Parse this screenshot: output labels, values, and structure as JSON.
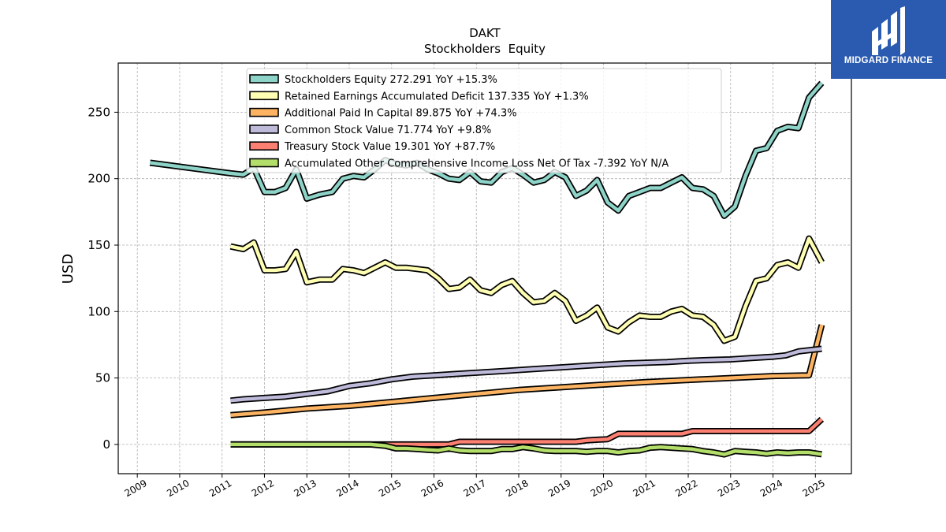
{
  "chart_data": {
    "type": "line",
    "title": "DAKT",
    "subtitle": "Stockholders  Equity",
    "ylabel": "USD",
    "xlabel": "",
    "ylim": [
      -22,
      287
    ],
    "xlim": [
      2008.55,
      2025.85
    ],
    "y_ticks": [
      0,
      50,
      100,
      150,
      200,
      250
    ],
    "x_ticks": [
      "2009",
      "2010",
      "2011",
      "2012",
      "2013",
      "2014",
      "2015",
      "2016",
      "2017",
      "2018",
      "2019",
      "2020",
      "2021",
      "2022",
      "2023",
      "2024",
      "2025"
    ],
    "grid": true,
    "legend_position": "top-center",
    "series": [
      {
        "name": "Stockholders Equity  272.291 YoY +15.3%",
        "color": "#8dd3c7",
        "points": [
          [
            2009.3,
            212
          ],
          [
            2011.2,
            204
          ],
          [
            2011.5,
            203
          ],
          [
            2011.75,
            208
          ],
          [
            2012.0,
            190
          ],
          [
            2012.25,
            190
          ],
          [
            2012.5,
            193
          ],
          [
            2012.75,
            207
          ],
          [
            2013.0,
            185
          ],
          [
            2013.3,
            188
          ],
          [
            2013.6,
            190
          ],
          [
            2013.85,
            200
          ],
          [
            2014.1,
            202
          ],
          [
            2014.35,
            201
          ],
          [
            2014.6,
            207
          ],
          [
            2014.85,
            214
          ],
          [
            2015.1,
            211
          ],
          [
            2015.35,
            210
          ],
          [
            2015.6,
            212
          ],
          [
            2015.85,
            207
          ],
          [
            2016.1,
            204
          ],
          [
            2016.35,
            200
          ],
          [
            2016.6,
            199
          ],
          [
            2016.85,
            205
          ],
          [
            2017.1,
            198
          ],
          [
            2017.35,
            197
          ],
          [
            2017.6,
            205
          ],
          [
            2017.85,
            208
          ],
          [
            2018.1,
            203
          ],
          [
            2018.35,
            197
          ],
          [
            2018.6,
            199
          ],
          [
            2018.85,
            205
          ],
          [
            2019.1,
            201
          ],
          [
            2019.35,
            187
          ],
          [
            2019.6,
            191
          ],
          [
            2019.85,
            199
          ],
          [
            2020.1,
            182
          ],
          [
            2020.35,
            176
          ],
          [
            2020.6,
            187
          ],
          [
            2020.85,
            190
          ],
          [
            2021.1,
            193
          ],
          [
            2021.35,
            193
          ],
          [
            2021.6,
            197
          ],
          [
            2021.85,
            201
          ],
          [
            2022.1,
            193
          ],
          [
            2022.35,
            192
          ],
          [
            2022.6,
            187
          ],
          [
            2022.85,
            172
          ],
          [
            2023.1,
            179
          ],
          [
            2023.35,
            202
          ],
          [
            2023.6,
            221
          ],
          [
            2023.85,
            223
          ],
          [
            2024.1,
            236
          ],
          [
            2024.35,
            239
          ],
          [
            2024.6,
            238
          ],
          [
            2024.85,
            261
          ],
          [
            2025.15,
            272
          ]
        ]
      },
      {
        "name": "Retained Earnings Accumulated Deficit  137.335 YoY +1.3%",
        "color": "#ffffb3",
        "points": [
          [
            2011.2,
            149
          ],
          [
            2011.5,
            147
          ],
          [
            2011.75,
            152
          ],
          [
            2012.0,
            131
          ],
          [
            2012.25,
            131
          ],
          [
            2012.5,
            132
          ],
          [
            2012.75,
            145
          ],
          [
            2013.0,
            122
          ],
          [
            2013.3,
            124
          ],
          [
            2013.6,
            124
          ],
          [
            2013.85,
            132
          ],
          [
            2014.1,
            131
          ],
          [
            2014.35,
            129
          ],
          [
            2014.6,
            133
          ],
          [
            2014.85,
            137
          ],
          [
            2015.1,
            133
          ],
          [
            2015.35,
            133
          ],
          [
            2015.6,
            132
          ],
          [
            2015.85,
            131
          ],
          [
            2016.1,
            125
          ],
          [
            2016.35,
            117
          ],
          [
            2016.6,
            118
          ],
          [
            2016.85,
            124
          ],
          [
            2017.1,
            116
          ],
          [
            2017.35,
            114
          ],
          [
            2017.6,
            120
          ],
          [
            2017.85,
            123
          ],
          [
            2018.1,
            114
          ],
          [
            2018.35,
            107
          ],
          [
            2018.6,
            108
          ],
          [
            2018.85,
            114
          ],
          [
            2019.1,
            108
          ],
          [
            2019.35,
            93
          ],
          [
            2019.6,
            97
          ],
          [
            2019.85,
            103
          ],
          [
            2020.1,
            88
          ],
          [
            2020.35,
            85
          ],
          [
            2020.6,
            92
          ],
          [
            2020.85,
            97
          ],
          [
            2021.1,
            96
          ],
          [
            2021.35,
            96
          ],
          [
            2021.6,
            100
          ],
          [
            2021.85,
            102
          ],
          [
            2022.1,
            97
          ],
          [
            2022.35,
            96
          ],
          [
            2022.6,
            90
          ],
          [
            2022.85,
            78
          ],
          [
            2023.1,
            81
          ],
          [
            2023.35,
            104
          ],
          [
            2023.6,
            123
          ],
          [
            2023.85,
            125
          ],
          [
            2024.1,
            135
          ],
          [
            2024.35,
            137
          ],
          [
            2024.6,
            133
          ],
          [
            2024.85,
            155
          ],
          [
            2025.15,
            137
          ]
        ]
      },
      {
        "name": "Additional Paid In Capital  89.875 YoY +74.3%",
        "color": "#fdb462",
        "points": [
          [
            2011.2,
            22
          ],
          [
            2012.0,
            24
          ],
          [
            2013.0,
            27
          ],
          [
            2014.0,
            29
          ],
          [
            2015.0,
            32
          ],
          [
            2016.0,
            35
          ],
          [
            2017.0,
            38
          ],
          [
            2018.0,
            41
          ],
          [
            2019.0,
            43
          ],
          [
            2020.0,
            45
          ],
          [
            2021.0,
            47
          ],
          [
            2022.0,
            48.5
          ],
          [
            2023.0,
            50
          ],
          [
            2024.0,
            51.5
          ],
          [
            2024.85,
            52
          ],
          [
            2025.15,
            90
          ]
        ]
      },
      {
        "name": "Common Stock Value  71.774 YoY +9.8%",
        "color": "#bebada",
        "points": [
          [
            2011.2,
            33
          ],
          [
            2011.5,
            34
          ],
          [
            2012.0,
            35
          ],
          [
            2012.5,
            36
          ],
          [
            2013.0,
            38
          ],
          [
            2013.5,
            40
          ],
          [
            2014.0,
            44
          ],
          [
            2014.5,
            46
          ],
          [
            2015.0,
            49
          ],
          [
            2015.5,
            51
          ],
          [
            2016.0,
            52
          ],
          [
            2016.5,
            53
          ],
          [
            2017.0,
            54
          ],
          [
            2017.5,
            55
          ],
          [
            2018.0,
            56
          ],
          [
            2018.5,
            57
          ],
          [
            2019.0,
            58
          ],
          [
            2019.5,
            59
          ],
          [
            2020.0,
            60
          ],
          [
            2020.5,
            61
          ],
          [
            2021.0,
            61.5
          ],
          [
            2021.5,
            62
          ],
          [
            2022.0,
            63
          ],
          [
            2022.5,
            63.5
          ],
          [
            2023.0,
            64
          ],
          [
            2023.5,
            65
          ],
          [
            2024.0,
            66
          ],
          [
            2024.3,
            67
          ],
          [
            2024.6,
            70
          ],
          [
            2025.15,
            72
          ]
        ]
      },
      {
        "name": "Treasury Stock Value  19.301 YoY +87.7%",
        "color": "#fb8072",
        "points": [
          [
            2011.2,
            0
          ],
          [
            2016.35,
            0
          ],
          [
            2016.6,
            2
          ],
          [
            2019.35,
            2
          ],
          [
            2019.6,
            3
          ],
          [
            2020.1,
            4
          ],
          [
            2020.35,
            8
          ],
          [
            2021.85,
            8
          ],
          [
            2022.1,
            10
          ],
          [
            2024.85,
            10
          ],
          [
            2025.15,
            19
          ]
        ]
      },
      {
        "name": "Accumulated Other Comprehensive Income Loss Net Of Tax  -7.392 YoY N/A",
        "color": "#b3de69",
        "points": [
          [
            2011.2,
            0
          ],
          [
            2014.5,
            0
          ],
          [
            2014.85,
            -1
          ],
          [
            2015.1,
            -3
          ],
          [
            2015.35,
            -3
          ],
          [
            2015.6,
            -3.5
          ],
          [
            2015.85,
            -4
          ],
          [
            2016.1,
            -4.5
          ],
          [
            2016.35,
            -3
          ],
          [
            2016.6,
            -4.5
          ],
          [
            2016.85,
            -5
          ],
          [
            2017.1,
            -5
          ],
          [
            2017.35,
            -5
          ],
          [
            2017.6,
            -3.5
          ],
          [
            2017.85,
            -3.5
          ],
          [
            2018.1,
            -2
          ],
          [
            2018.35,
            -3
          ],
          [
            2018.6,
            -4.5
          ],
          [
            2018.85,
            -5
          ],
          [
            2019.1,
            -5
          ],
          [
            2019.35,
            -5
          ],
          [
            2019.6,
            -5.5
          ],
          [
            2019.85,
            -5
          ],
          [
            2020.1,
            -5
          ],
          [
            2020.35,
            -6
          ],
          [
            2020.6,
            -5
          ],
          [
            2020.85,
            -4.5
          ],
          [
            2021.1,
            -2.5
          ],
          [
            2021.35,
            -2
          ],
          [
            2021.6,
            -2.5
          ],
          [
            2021.85,
            -3
          ],
          [
            2022.1,
            -3.5
          ],
          [
            2022.35,
            -5
          ],
          [
            2022.6,
            -6
          ],
          [
            2022.85,
            -7.5
          ],
          [
            2023.1,
            -5
          ],
          [
            2023.35,
            -5.5
          ],
          [
            2023.6,
            -6
          ],
          [
            2023.85,
            -7
          ],
          [
            2024.1,
            -6
          ],
          [
            2024.35,
            -6.5
          ],
          [
            2024.6,
            -6
          ],
          [
            2024.85,
            -6
          ],
          [
            2025.15,
            -7.4
          ]
        ]
      }
    ]
  },
  "logo": {
    "text": "MIDGARD FINANCE",
    "background": "#2a5bb0"
  }
}
